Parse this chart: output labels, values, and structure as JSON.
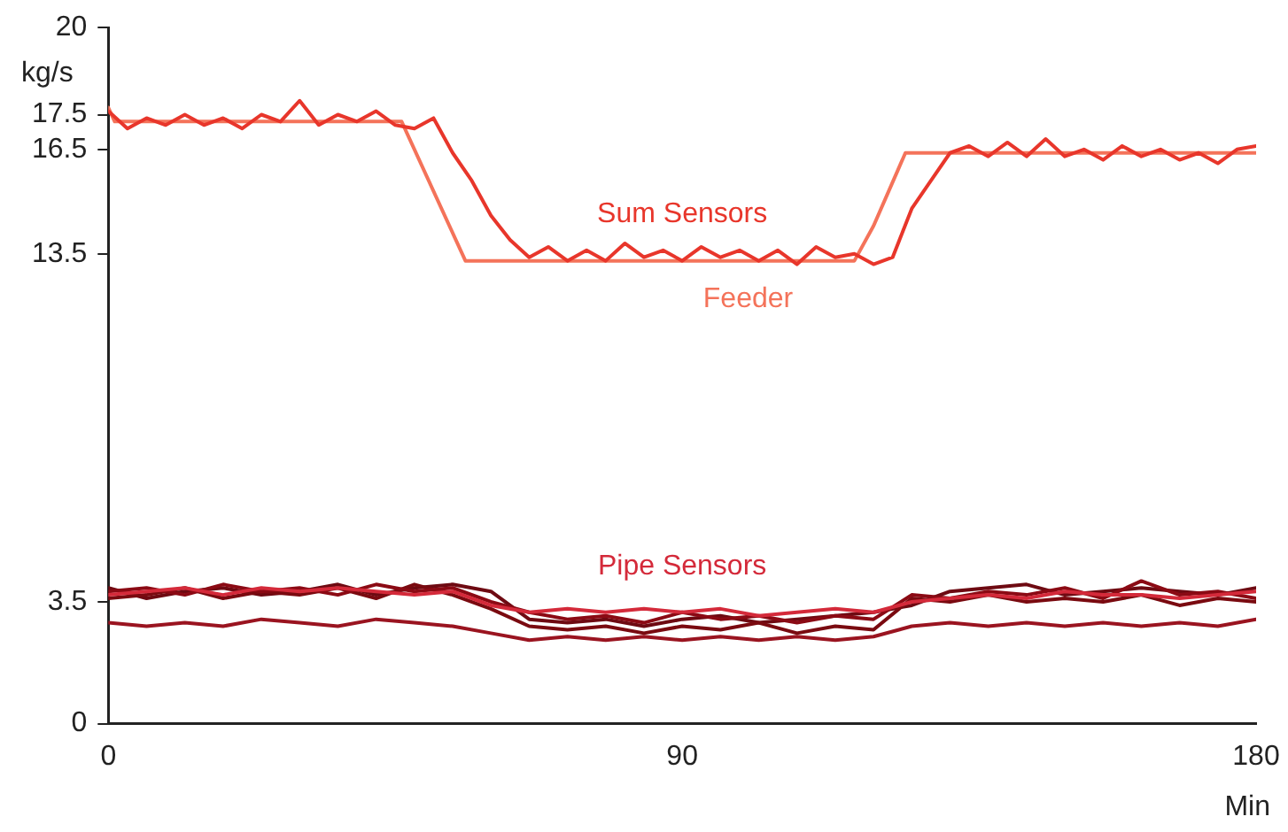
{
  "chart_data": {
    "type": "line",
    "xlabel": "Min",
    "ylabel": "kg/s",
    "xlim": [
      0,
      180
    ],
    "xticks": [
      0,
      90,
      180
    ],
    "ylim": [
      0,
      20
    ],
    "yticks": [
      0,
      3.5,
      13.5,
      16.5,
      17.5,
      20
    ],
    "grid": false,
    "legend": false,
    "marker": "none",
    "line_style": "solid",
    "annotations": [
      "Pipe Sensors"
    ],
    "series": [
      {
        "name": "Sum Sensors",
        "color": "#e8362b",
        "x": [
          0,
          3,
          6,
          9,
          12,
          15,
          18,
          21,
          24,
          27,
          30,
          33,
          36,
          39,
          42,
          45,
          48,
          51,
          54,
          57,
          60,
          63,
          66,
          69,
          72,
          75,
          78,
          81,
          84,
          87,
          90,
          93,
          96,
          99,
          102,
          105,
          108,
          111,
          114,
          117,
          120,
          123,
          126,
          129,
          132,
          135,
          138,
          141,
          144,
          147,
          150,
          153,
          156,
          159,
          162,
          165,
          168,
          171,
          174,
          177,
          180
        ],
        "values": [
          17.6,
          17.1,
          17.4,
          17.2,
          17.5,
          17.2,
          17.4,
          17.1,
          17.5,
          17.3,
          17.9,
          17.2,
          17.5,
          17.3,
          17.6,
          17.2,
          17.1,
          17.4,
          16.4,
          15.6,
          14.6,
          13.9,
          13.4,
          13.7,
          13.3,
          13.6,
          13.3,
          13.8,
          13.4,
          13.6,
          13.3,
          13.7,
          13.4,
          13.6,
          13.3,
          13.6,
          13.2,
          13.7,
          13.4,
          13.5,
          13.2,
          13.4,
          14.8,
          15.6,
          16.4,
          16.6,
          16.3,
          16.7,
          16.3,
          16.8,
          16.3,
          16.5,
          16.2,
          16.6,
          16.3,
          16.5,
          16.2,
          16.4,
          16.1,
          16.5,
          16.6
        ]
      },
      {
        "name": "Feeder",
        "color": "#f4735a",
        "x": [
          0,
          1,
          46,
          56,
          117,
          120,
          125,
          180
        ],
        "values": [
          17.7,
          17.3,
          17.3,
          13.3,
          13.3,
          14.3,
          16.4,
          16.4
        ]
      },
      {
        "color": "#d42a3a",
        "x": [
          0,
          6,
          12,
          18,
          24,
          30,
          36,
          42,
          48,
          54,
          60,
          66,
          72,
          78,
          84,
          90,
          96,
          102,
          108,
          114,
          120,
          126,
          132,
          138,
          144,
          150,
          156,
          162,
          168,
          174,
          180
        ],
        "values": [
          3.7,
          3.8,
          3.9,
          3.7,
          3.9,
          3.8,
          3.9,
          3.8,
          3.7,
          3.8,
          3.4,
          3.2,
          3.3,
          3.2,
          3.3,
          3.2,
          3.3,
          3.1,
          3.2,
          3.3,
          3.2,
          3.5,
          3.6,
          3.7,
          3.6,
          3.8,
          3.7,
          3.7,
          3.6,
          3.7,
          3.8
        ]
      },
      {
        "color": "#8b0a14",
        "x": [
          0,
          6,
          12,
          18,
          24,
          30,
          36,
          42,
          48,
          54,
          60,
          66,
          72,
          78,
          84,
          90,
          96,
          102,
          108,
          114,
          120,
          126,
          132,
          138,
          144,
          150,
          156,
          162,
          168,
          174,
          180
        ],
        "values": [
          3.8,
          3.9,
          3.7,
          4.0,
          3.8,
          3.9,
          3.7,
          4.0,
          3.8,
          3.9,
          3.5,
          3.2,
          3.0,
          3.1,
          2.9,
          3.2,
          3.0,
          3.1,
          2.9,
          3.1,
          3.0,
          3.7,
          3.6,
          3.8,
          3.7,
          3.9,
          3.6,
          4.1,
          3.7,
          3.8,
          3.6
        ]
      },
      {
        "color": "#7a0a10",
        "x": [
          0,
          6,
          12,
          18,
          24,
          30,
          36,
          42,
          48,
          54,
          60,
          66,
          72,
          78,
          84,
          90,
          96,
          102,
          108,
          114,
          120,
          126,
          132,
          138,
          144,
          150,
          156,
          162,
          168,
          174,
          180
        ],
        "values": [
          3.6,
          3.7,
          3.9,
          3.6,
          3.8,
          3.7,
          3.9,
          3.6,
          4.0,
          3.7,
          3.3,
          2.8,
          2.7,
          2.8,
          2.6,
          2.8,
          2.7,
          2.9,
          2.6,
          2.8,
          2.7,
          3.6,
          3.5,
          3.7,
          3.5,
          3.6,
          3.5,
          3.7,
          3.4,
          3.6,
          3.5
        ]
      },
      {
        "color": "#6e0a12",
        "x": [
          0,
          6,
          12,
          18,
          24,
          30,
          36,
          42,
          48,
          54,
          60,
          66,
          72,
          78,
          84,
          90,
          96,
          102,
          108,
          114,
          120,
          126,
          132,
          138,
          144,
          150,
          156,
          162,
          168,
          174,
          180
        ],
        "values": [
          3.9,
          3.6,
          3.8,
          3.9,
          3.7,
          3.8,
          4.0,
          3.7,
          3.9,
          4.0,
          3.8,
          3.0,
          2.9,
          3.0,
          2.8,
          3.0,
          3.1,
          2.9,
          3.0,
          3.1,
          3.2,
          3.4,
          3.8,
          3.9,
          4.0,
          3.7,
          3.8,
          3.9,
          3.8,
          3.7,
          3.9
        ]
      },
      {
        "color": "#9a1420",
        "x": [
          0,
          6,
          12,
          18,
          24,
          30,
          36,
          42,
          48,
          54,
          60,
          66,
          72,
          78,
          84,
          90,
          96,
          102,
          108,
          114,
          120,
          126,
          132,
          138,
          144,
          150,
          156,
          162,
          168,
          174,
          180
        ],
        "values": [
          2.9,
          2.8,
          2.9,
          2.8,
          3.0,
          2.9,
          2.8,
          3.0,
          2.9,
          2.8,
          2.6,
          2.4,
          2.5,
          2.4,
          2.5,
          2.4,
          2.5,
          2.4,
          2.5,
          2.4,
          2.5,
          2.8,
          2.9,
          2.8,
          2.9,
          2.8,
          2.9,
          2.8,
          2.9,
          2.8,
          3.0
        ]
      }
    ]
  }
}
